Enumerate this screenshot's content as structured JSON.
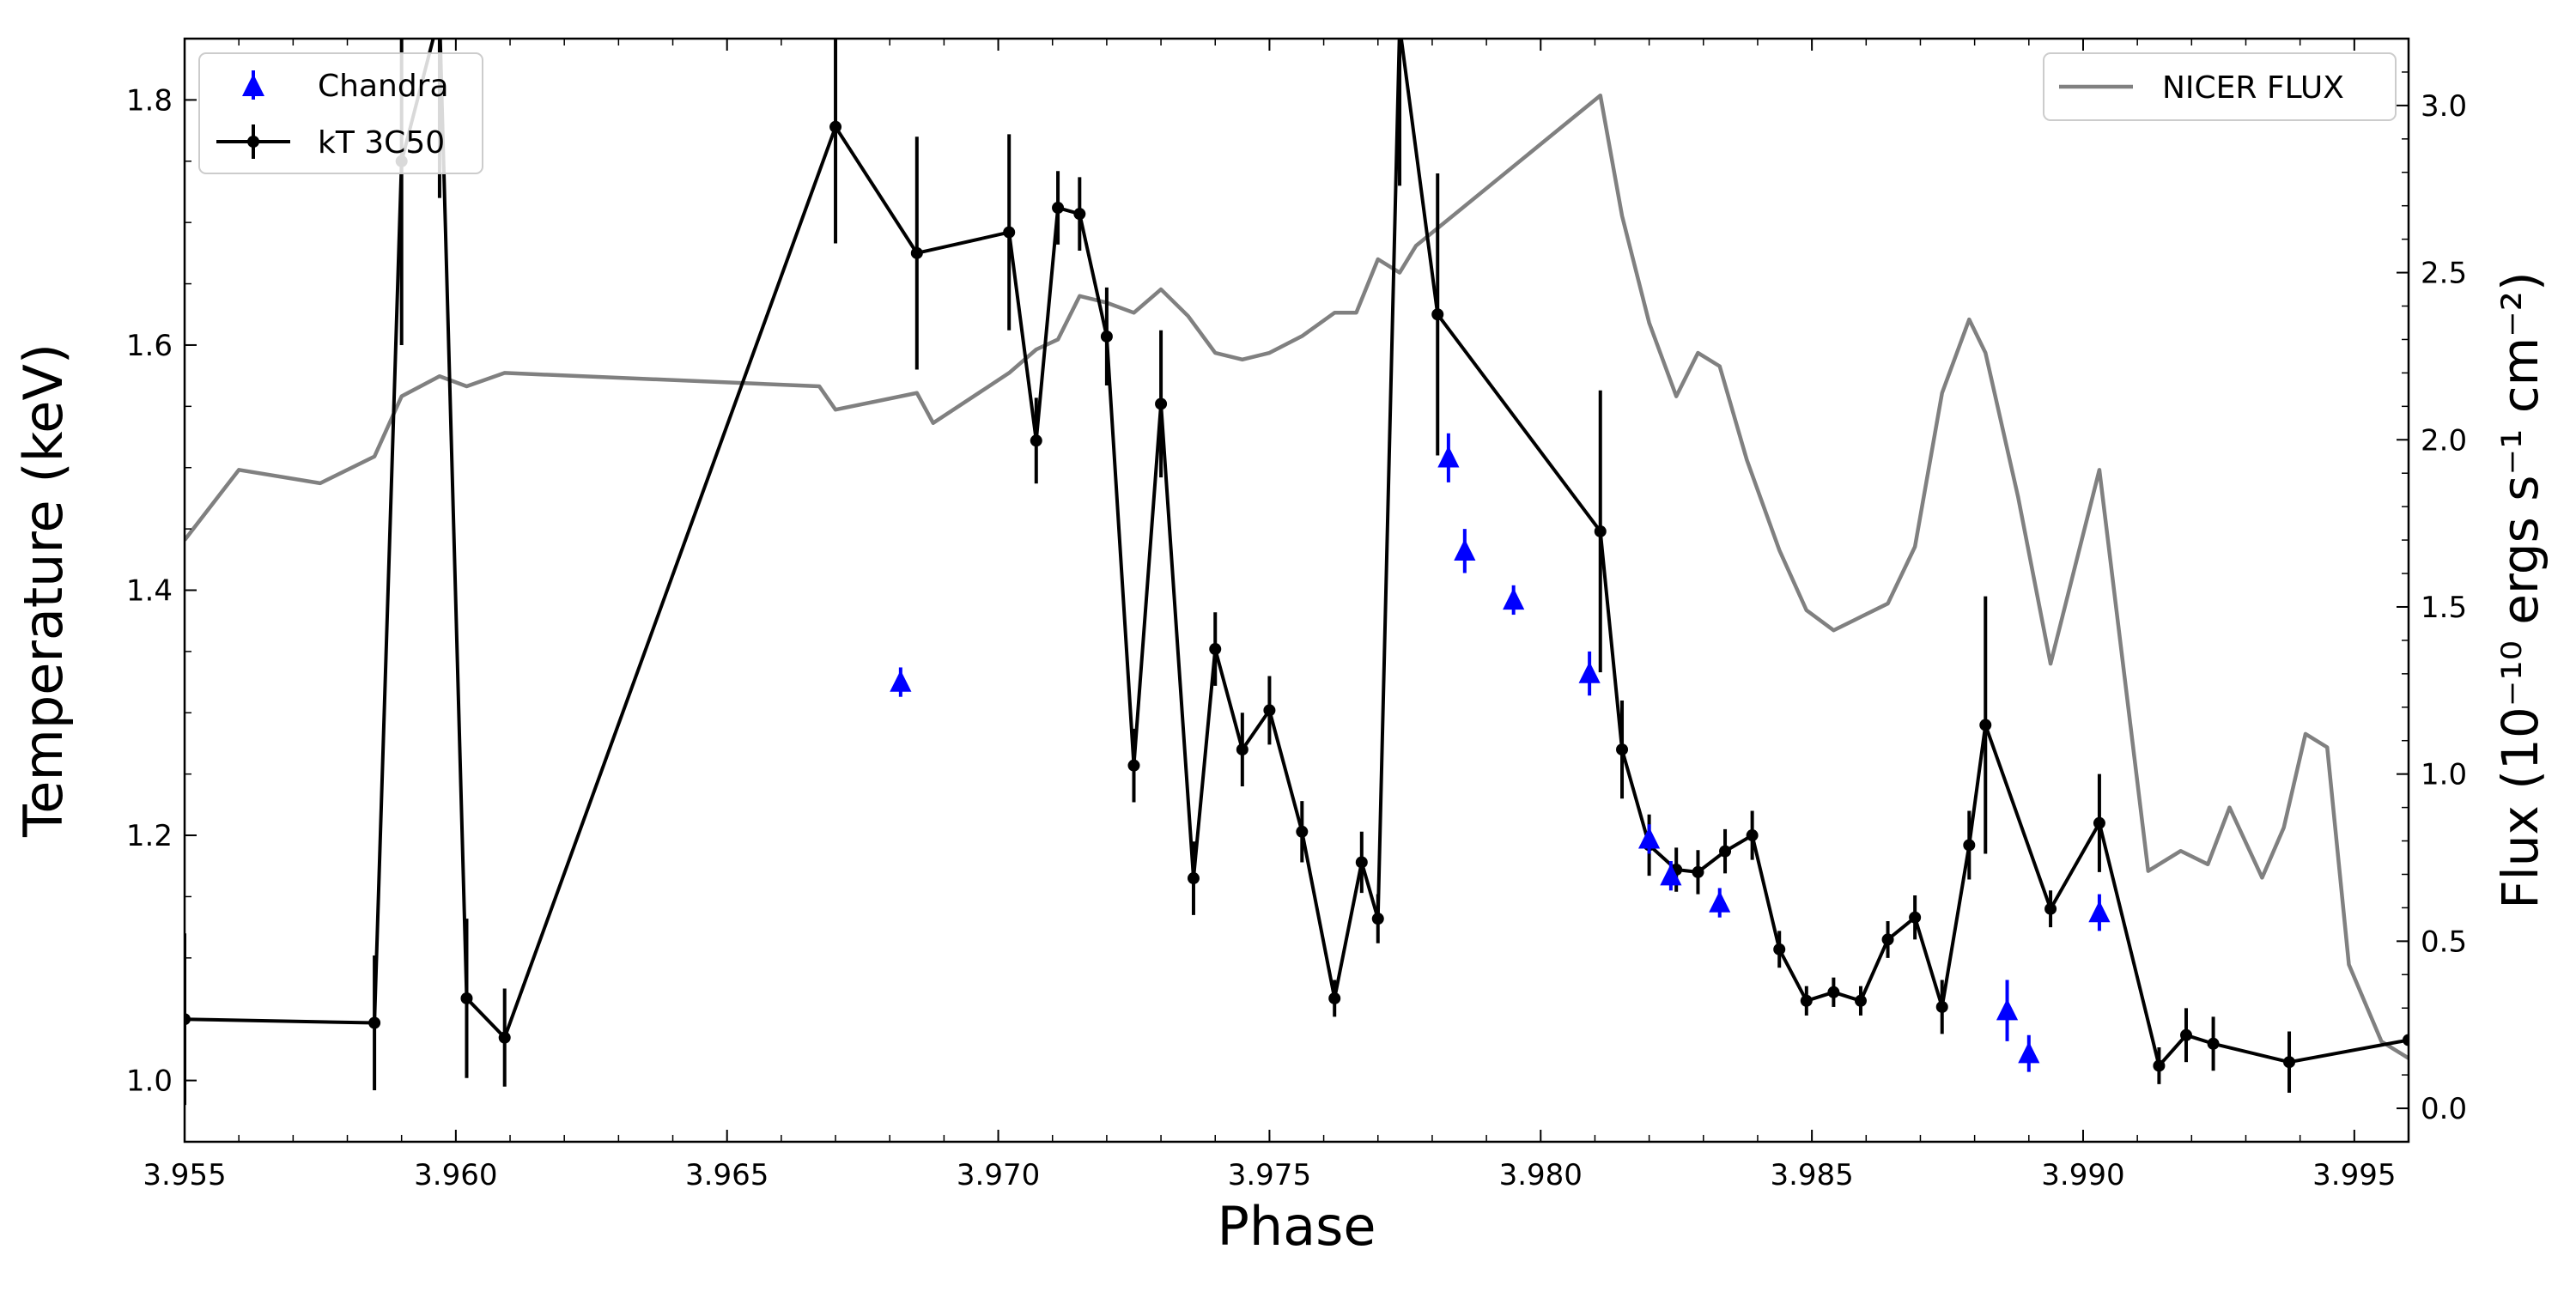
{
  "chart_data": {
    "type": "line",
    "xlabel": "Phase",
    "ylabel": "Temperature (keV)",
    "y2label": "Flux (10⁻¹⁰ ergs s⁻¹ cm⁻²)",
    "xlim": [
      3.955,
      3.996
    ],
    "ylim": [
      0.95,
      1.85
    ],
    "y2lim": [
      -0.1,
      3.2
    ],
    "xticks": [
      "3.955",
      "3.960",
      "3.965",
      "3.970",
      "3.975",
      "3.980",
      "3.985",
      "3.990",
      "3.995"
    ],
    "yticks": [
      "1.0",
      "1.2",
      "1.4",
      "1.6",
      "1.8"
    ],
    "y2ticks": [
      "0.0",
      "0.5",
      "1.0",
      "1.5",
      "2.0",
      "2.5",
      "3.0"
    ],
    "legend_left": {
      "placement": "top-left",
      "entries": [
        "Chandra",
        "kT 3C50"
      ]
    },
    "legend_right": {
      "placement": "top-right",
      "entries": [
        "NICER FLUX"
      ]
    },
    "series": [
      {
        "name": "kT 3C50",
        "axis": "left",
        "color": "#000000",
        "x": [
          3.955,
          3.9585,
          3.959,
          3.9597,
          3.9602,
          3.9609,
          3.967,
          3.9685,
          3.9702,
          3.9707,
          3.9711,
          3.9715,
          3.972,
          3.9725,
          3.973,
          3.9736,
          3.974,
          3.9745,
          3.975,
          3.9756,
          3.9762,
          3.9767,
          3.977,
          3.9774,
          3.9781,
          3.9811,
          3.9815,
          3.982,
          3.9825,
          3.9829,
          3.9834,
          3.9839,
          3.9844,
          3.9849,
          3.9854,
          3.9859,
          3.9864,
          3.9869,
          3.9874,
          3.9879,
          3.9882,
          3.9894,
          3.9903,
          3.9914,
          3.9919,
          3.9924,
          3.9938,
          3.996
        ],
        "y": [
          1.05,
          1.047,
          1.75,
          1.87,
          1.067,
          1.035,
          1.778,
          1.675,
          1.692,
          1.522,
          1.712,
          1.707,
          1.607,
          1.257,
          1.552,
          1.165,
          1.352,
          1.27,
          1.302,
          1.203,
          1.067,
          1.178,
          1.132,
          1.86,
          1.625,
          1.448,
          1.27,
          1.192,
          1.172,
          1.17,
          1.187,
          1.2,
          1.107,
          1.065,
          1.072,
          1.065,
          1.115,
          1.133,
          1.06,
          1.192,
          1.29,
          1.14,
          1.21,
          1.012,
          1.037,
          1.03,
          1.015,
          1.033
        ],
        "yerr": [
          0.07,
          0.055,
          0.15,
          0.15,
          0.065,
          0.04,
          0.095,
          0.095,
          0.08,
          0.035,
          0.03,
          0.03,
          0.04,
          0.03,
          0.06,
          0.03,
          0.03,
          0.03,
          0.028,
          0.025,
          0.015,
          0.025,
          0.02,
          0.13,
          0.115,
          0.115,
          0.04,
          0.025,
          0.018,
          0.018,
          0.018,
          0.02,
          0.015,
          0.012,
          0.012,
          0.012,
          0.015,
          0.018,
          0.022,
          0.028,
          0.105,
          0.015,
          0.04,
          0.015,
          0.022,
          0.022,
          0.025,
          0.0
        ]
      },
      {
        "name": "Chandra",
        "axis": "left",
        "color": "#0000ff",
        "marker": "triangle-up",
        "x": [
          3.9682,
          3.9783,
          3.9786,
          3.9795,
          3.9809,
          3.982,
          3.9824,
          3.9833,
          3.9886,
          3.989,
          3.9903
        ],
        "y": [
          1.325,
          1.508,
          1.432,
          1.392,
          1.332,
          1.197,
          1.167,
          1.145,
          1.057,
          1.022,
          1.137
        ],
        "yerr": [
          0.012,
          0.02,
          0.018,
          0.012,
          0.018,
          0.012,
          0.012,
          0.012,
          0.025,
          0.015,
          0.015
        ]
      },
      {
        "name": "NICER FLUX",
        "axis": "right",
        "color": "#808080",
        "x": [
          3.955,
          3.956,
          3.9575,
          3.9585,
          3.959,
          3.9597,
          3.9602,
          3.9609,
          3.9667,
          3.967,
          3.9685,
          3.9688,
          3.9702,
          3.9707,
          3.9711,
          3.9715,
          3.972,
          3.9725,
          3.973,
          3.9735,
          3.974,
          3.9745,
          3.975,
          3.9756,
          3.9762,
          3.9766,
          3.977,
          3.9774,
          3.9777,
          3.9811,
          3.9815,
          3.982,
          3.9825,
          3.9829,
          3.9833,
          3.9838,
          3.9844,
          3.9849,
          3.9854,
          3.9859,
          3.9864,
          3.9869,
          3.9874,
          3.9879,
          3.9882,
          3.9888,
          3.9894,
          3.9903,
          3.9912,
          3.9918,
          3.9923,
          3.9927,
          3.9933,
          3.9937,
          3.9941,
          3.9945,
          3.9949,
          3.9955,
          3.996
        ],
        "y": [
          1.7,
          1.91,
          1.87,
          1.95,
          2.13,
          2.19,
          2.16,
          2.2,
          2.16,
          2.09,
          2.14,
          2.05,
          2.2,
          2.27,
          2.3,
          2.43,
          2.41,
          2.38,
          2.45,
          2.37,
          2.26,
          2.24,
          2.26,
          2.31,
          2.38,
          2.38,
          2.54,
          2.5,
          2.58,
          3.03,
          2.67,
          2.35,
          2.13,
          2.26,
          2.22,
          1.94,
          1.67,
          1.49,
          1.43,
          1.47,
          1.51,
          1.68,
          2.14,
          2.36,
          2.26,
          1.83,
          1.33,
          1.91,
          0.71,
          0.77,
          0.73,
          0.9,
          0.69,
          0.84,
          1.12,
          1.08,
          0.43,
          0.2,
          0.15
        ]
      }
    ]
  }
}
